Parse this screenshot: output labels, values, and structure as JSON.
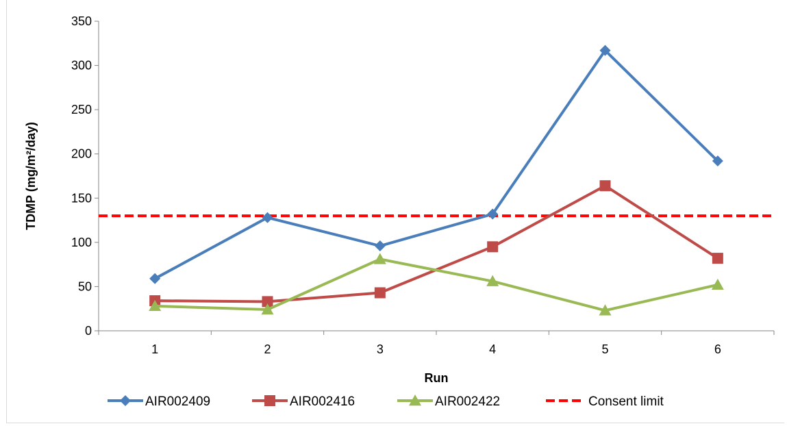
{
  "chart_data": {
    "type": "line",
    "xlabel": "Run",
    "ylabel": "TDMP (mg/m²/day)",
    "categories": [
      "1",
      "2",
      "3",
      "4",
      "5",
      "6"
    ],
    "ylim": [
      0,
      350
    ],
    "yticks": [
      0,
      50,
      100,
      150,
      200,
      250,
      300,
      350
    ],
    "series": [
      {
        "name": "AIR002409",
        "color": "#4a7ebb",
        "marker": "diamond",
        "values": [
          59,
          128,
          96,
          132,
          317,
          192
        ]
      },
      {
        "name": "AIR002416",
        "color": "#be4b48",
        "marker": "square",
        "values": [
          34,
          33,
          43,
          95,
          164,
          82
        ]
      },
      {
        "name": "AIR002422",
        "color": "#98b954",
        "marker": "triangle",
        "values": [
          28,
          24,
          81,
          56,
          23,
          52
        ]
      }
    ],
    "reference_line": {
      "name": "Consent limit",
      "color": "#ff0000",
      "value": 130,
      "style": "dashed"
    },
    "grid": false,
    "legend_position": "bottom"
  }
}
